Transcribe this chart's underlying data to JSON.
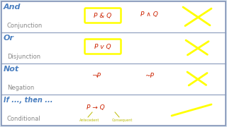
{
  "bg_color": "#dce6f0",
  "row_bg": "#ffffff",
  "border_color": "#8899bb",
  "rows": [
    {
      "keyword": "And",
      "subtitle": "Conjunction",
      "box_text": "P & Q",
      "symbol_text": "P ∧ Q",
      "has_x": true,
      "has_box": true,
      "has_slash": false
    },
    {
      "keyword": "Or",
      "subtitle": "Disjunction",
      "box_text": "P v Q",
      "symbol_text": "",
      "has_x": true,
      "has_box": true,
      "has_slash": false
    },
    {
      "keyword": "Not",
      "subtitle": "Negation",
      "box_text": "¬P",
      "symbol_text": "~P",
      "has_x": true,
      "has_box": false,
      "has_slash": false
    },
    {
      "keyword": "If ..., then ...",
      "subtitle": "Conditional",
      "box_text": "P → Q",
      "symbol_text": "",
      "has_x": false,
      "has_box": false,
      "has_slash": true,
      "antecedent_label": "Antecedent",
      "consequent_label": "Consequent"
    }
  ],
  "keyword_color": "#4a7fc0",
  "subtitle_color": "#888888",
  "formula_color": "#cc2200",
  "box_border_color": "#ffff00",
  "x_color": "#ffff00",
  "slash_color": "#ffff00",
  "label_color": "#bbbb00"
}
